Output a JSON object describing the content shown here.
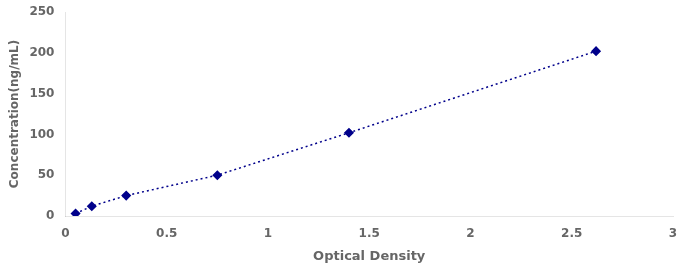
{
  "chart_data": {
    "type": "line",
    "x": [
      0.05,
      0.13,
      0.3,
      0.75,
      1.4,
      2.62
    ],
    "values": [
      3,
      12,
      25,
      50,
      102,
      202
    ],
    "color": "#00008B",
    "marker": "diamond",
    "line_style": "dotted",
    "xlabel": "Optical Density",
    "ylabel": "Concentration(ng/mL)",
    "xlim": [
      0,
      3
    ],
    "ylim": [
      0,
      250
    ],
    "xticks": [
      0,
      0.5,
      1,
      1.5,
      2,
      2.5,
      3
    ],
    "yticks": [
      0,
      50,
      100,
      150,
      200,
      250
    ],
    "grid": false
  }
}
